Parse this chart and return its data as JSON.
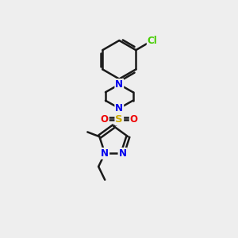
{
  "bg_color": "#eeeeee",
  "bond_color": "#1a1a1a",
  "nitrogen_color": "#0000ee",
  "oxygen_color": "#ee0000",
  "sulfur_color": "#ccaa00",
  "chlorine_color": "#44cc00",
  "line_width": 1.8,
  "fig_w": 3.0,
  "fig_h": 3.0,
  "dpi": 100,
  "xlim": [
    0,
    10
  ],
  "ylim": [
    0,
    10
  ]
}
